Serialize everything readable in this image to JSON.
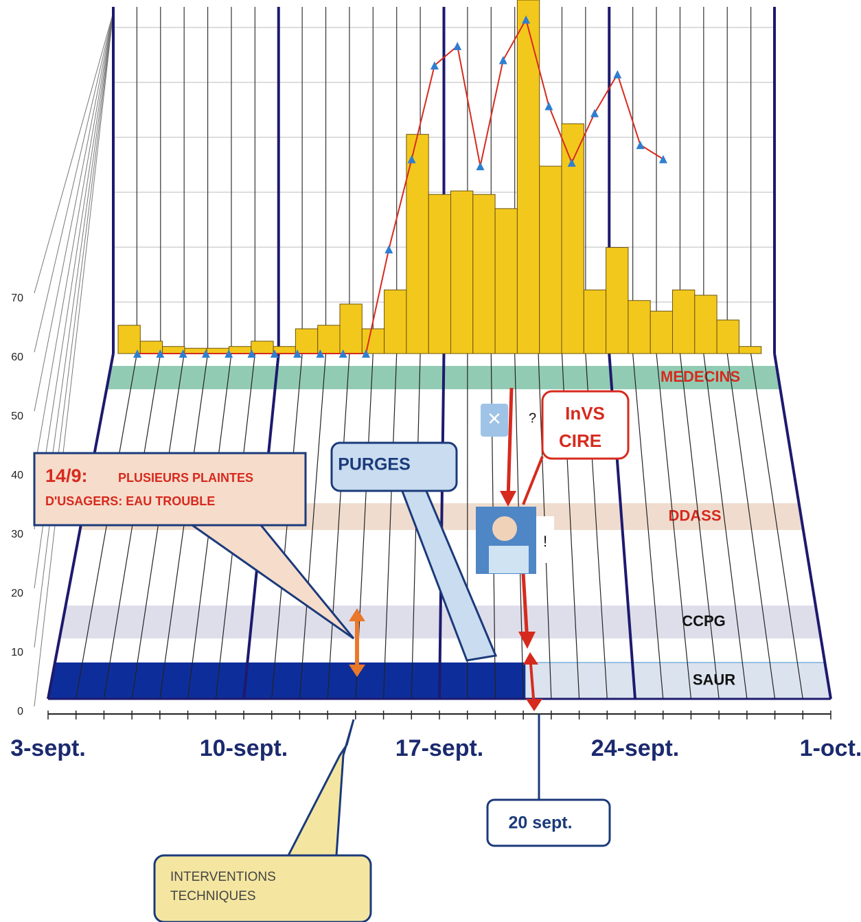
{
  "chart_data": {
    "type": "bar",
    "ylim": [
      0,
      100
    ],
    "bars": {
      "color": "#f3c81c",
      "values": [
        8,
        3.5,
        2,
        1.5,
        1.5,
        2,
        3.5,
        2,
        7,
        8,
        14,
        7,
        18,
        62,
        45,
        46,
        45,
        41,
        100,
        53,
        65,
        18,
        30,
        15,
        12,
        18,
        16.5,
        9.5,
        2
      ]
    },
    "line": {
      "color": "#d62a1e",
      "marker_color": "#2f7fd0",
      "values": [
        0,
        0,
        0,
        0,
        0,
        0,
        0,
        0,
        0,
        0,
        0,
        29.5,
        55,
        81.5,
        87,
        53,
        83,
        94.5,
        70,
        54,
        68,
        79,
        59,
        55
      ]
    },
    "floor_ylim": [
      0,
      70
    ],
    "floor_yticks": [
      0,
      10,
      20,
      30,
      40,
      50,
      60,
      70
    ],
    "x_labels": [
      "3-sept.",
      "10-sept.",
      "17-sept.",
      "24-sept.",
      "1-oct."
    ],
    "lanes": [
      {
        "label": "MEDECINS",
        "color": "#7fc2a6",
        "text_color": "#d62a1e"
      },
      {
        "label": "DDASS",
        "color": "#ecd6c6",
        "text_color": "#d62a1e"
      },
      {
        "label": "CCPG",
        "color": "#d8d8e8",
        "text_color": "#111111"
      },
      {
        "label": "SAUR",
        "color": "#0d2e9a",
        "text_color": "#111111"
      }
    ],
    "callouts": {
      "complaint": {
        "date": "14/9:",
        "lines": [
          "PLUSIEURS PLAINTES",
          "D'USAGERS: EAU TROUBLE"
        ]
      },
      "purges": "PURGES",
      "invs": [
        "InVS",
        "CIRE"
      ],
      "date_box": "20 sept.",
      "interventions": [
        "INTERVENTIONS",
        "TECHNIQUES"
      ],
      "question": "?",
      "exclamation": "!"
    }
  }
}
